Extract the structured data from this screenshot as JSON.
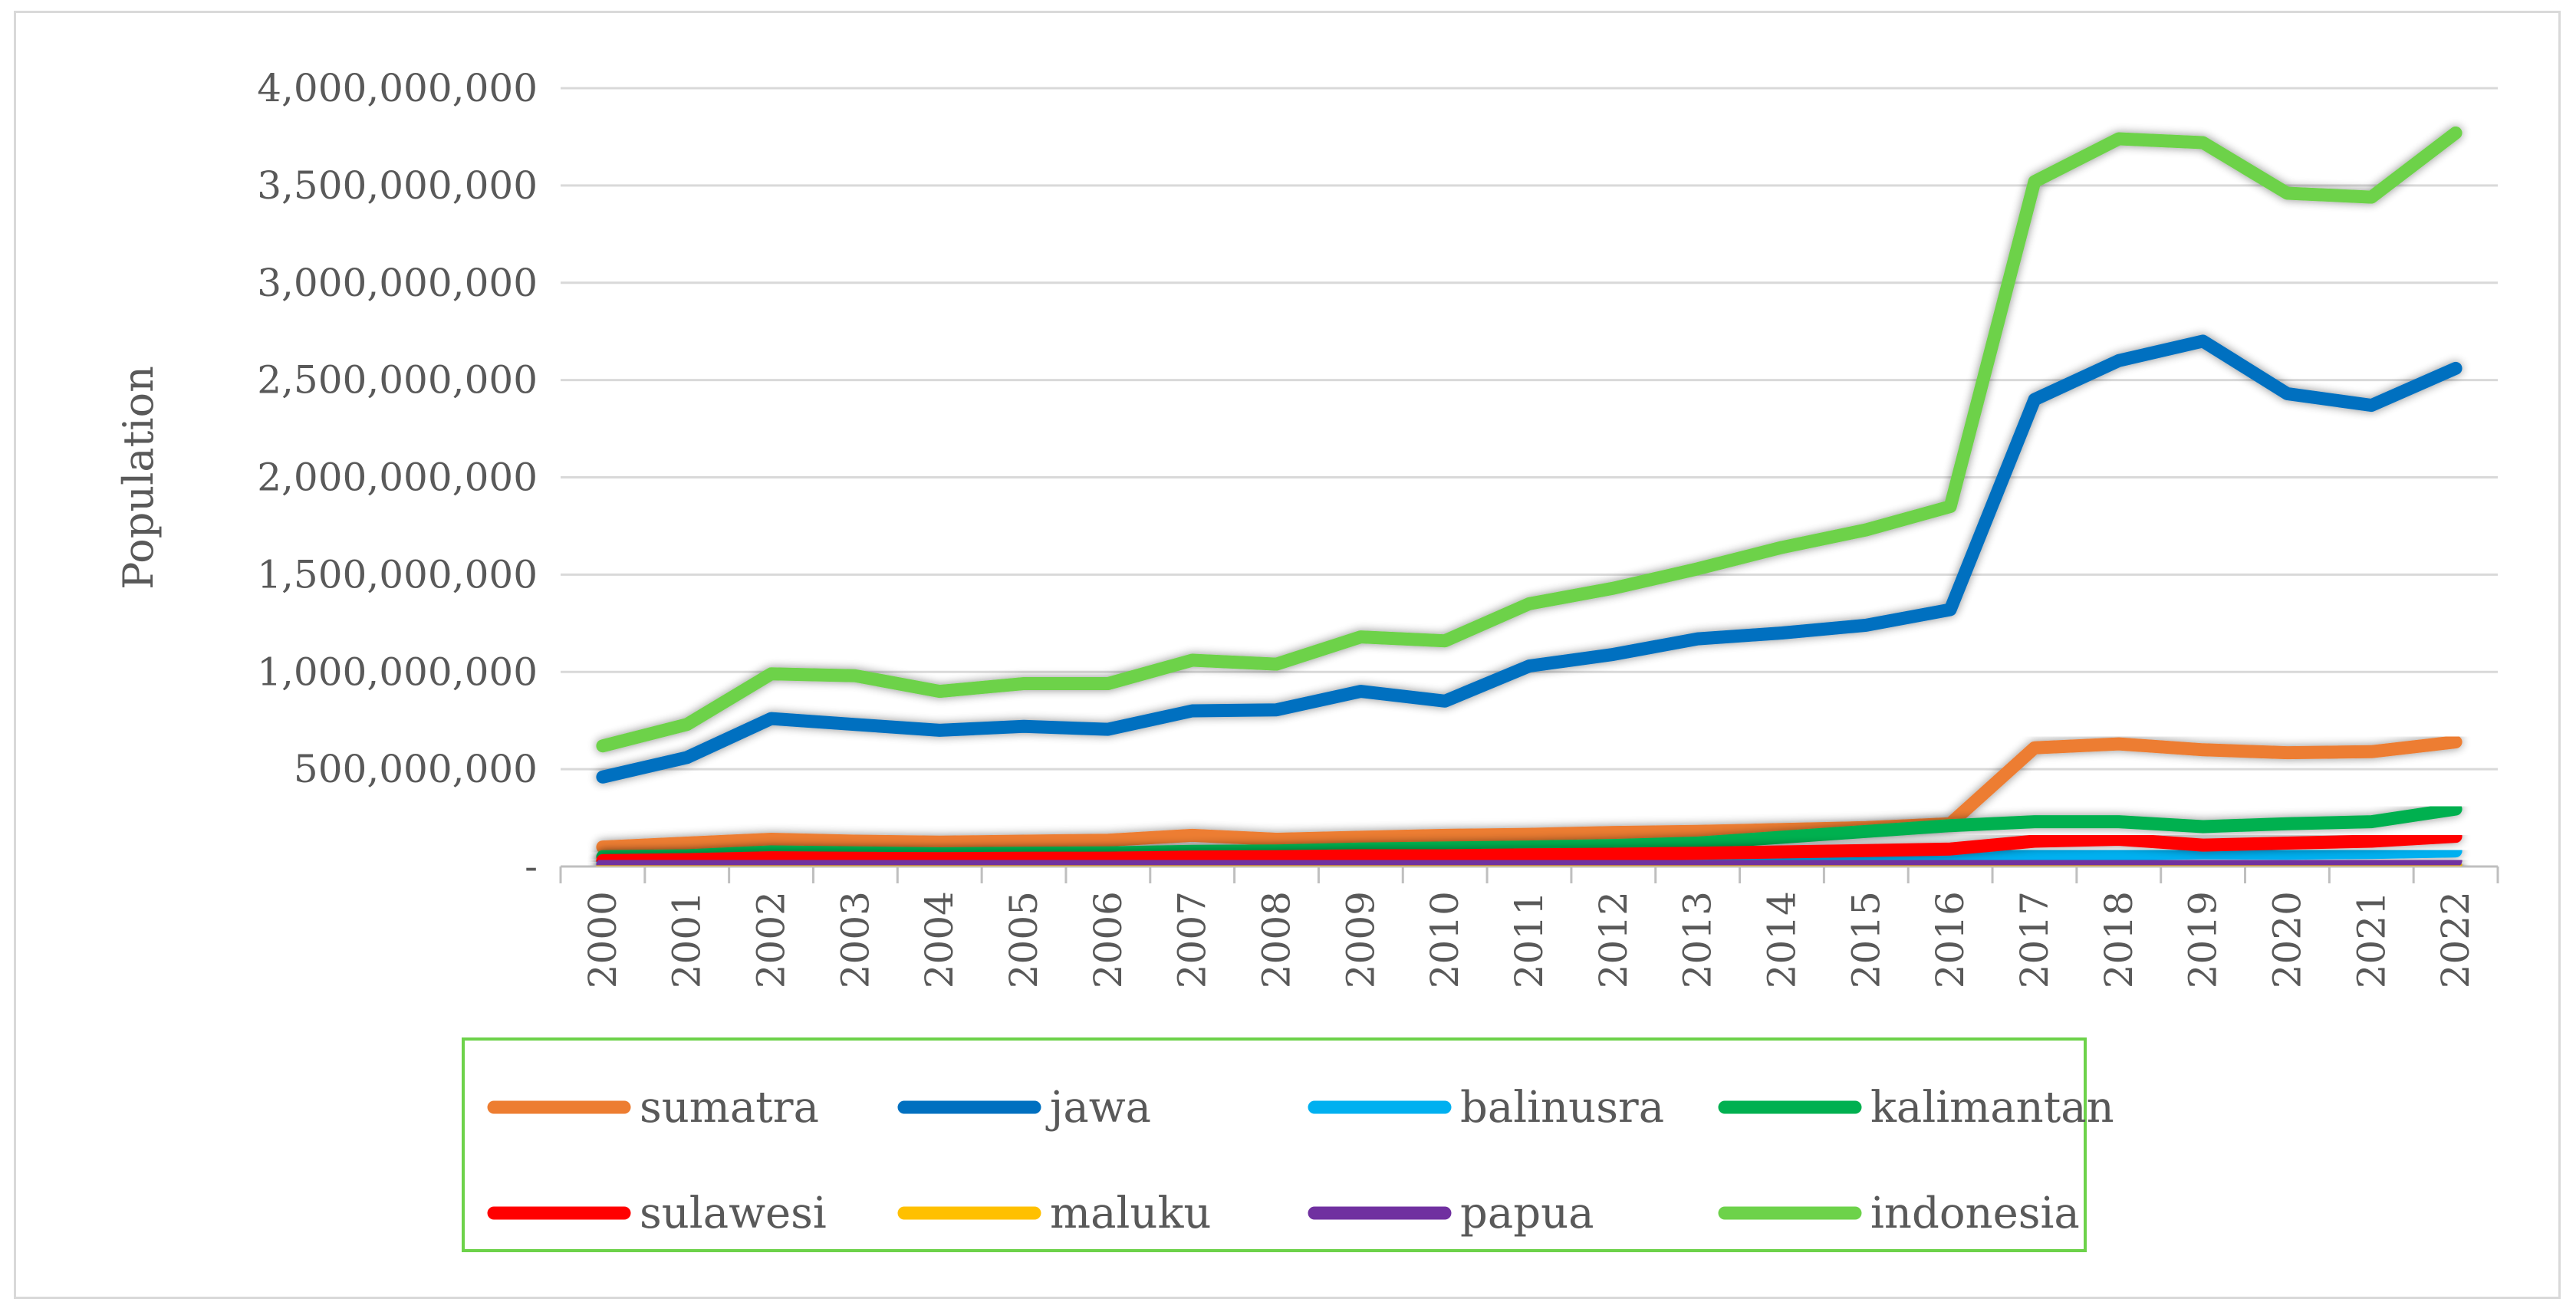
{
  "chart_data": {
    "type": "line",
    "title": "",
    "xlabel": "",
    "ylabel": "Population",
    "ylim": [
      0,
      4000000000
    ],
    "y_ticks": [
      {
        "value": 0,
        "label": "-"
      },
      {
        "value": 500000000,
        "label": "500,000,000"
      },
      {
        "value": 1000000000,
        "label": "1,000,000,000"
      },
      {
        "value": 1500000000,
        "label": "1,500,000,000"
      },
      {
        "value": 2000000000,
        "label": "2,000,000,000"
      },
      {
        "value": 2500000000,
        "label": "2,500,000,000"
      },
      {
        "value": 3000000000,
        "label": "3,000,000,000"
      },
      {
        "value": 3500000000,
        "label": "3,500,000,000"
      },
      {
        "value": 4000000000,
        "label": "4,000,000,000"
      }
    ],
    "x": [
      "2000",
      "2001",
      "2002",
      "2003",
      "2004",
      "2005",
      "2006",
      "2007",
      "2008",
      "2009",
      "2010",
      "2011",
      "2012",
      "2013",
      "2014",
      "2015",
      "2016",
      "2017",
      "2018",
      "2019",
      "2020",
      "2021",
      "2022"
    ],
    "grid": true,
    "legend_position": "bottom",
    "series": [
      {
        "name": "sumatra",
        "color": "#ED7D31",
        "values": [
          100000000,
          120000000,
          140000000,
          130000000,
          125000000,
          130000000,
          135000000,
          160000000,
          140000000,
          150000000,
          160000000,
          165000000,
          175000000,
          180000000,
          190000000,
          200000000,
          220000000,
          610000000,
          630000000,
          600000000,
          585000000,
          590000000,
          640000000
        ]
      },
      {
        "name": "jawa",
        "color": "#0070C0",
        "values": [
          460000000,
          560000000,
          760000000,
          730000000,
          700000000,
          720000000,
          705000000,
          800000000,
          805000000,
          900000000,
          850000000,
          1030000000,
          1090000000,
          1170000000,
          1200000000,
          1240000000,
          1320000000,
          2400000000,
          2600000000,
          2700000000,
          2430000000,
          2370000000,
          2560000000
        ]
      },
      {
        "name": "balinusra",
        "color": "#00B0F0",
        "values": [
          15000000,
          17000000,
          20000000,
          19000000,
          18000000,
          19000000,
          20000000,
          22000000,
          21000000,
          23000000,
          24000000,
          26000000,
          28000000,
          30000000,
          32000000,
          35000000,
          38000000,
          60000000,
          65000000,
          70000000,
          68000000,
          72000000,
          80000000
        ]
      },
      {
        "name": "kalimantan",
        "color": "#00B050",
        "values": [
          50000000,
          55000000,
          75000000,
          70000000,
          65000000,
          68000000,
          70000000,
          78000000,
          80000000,
          90000000,
          95000000,
          100000000,
          108000000,
          120000000,
          150000000,
          180000000,
          210000000,
          230000000,
          230000000,
          205000000,
          220000000,
          230000000,
          295000000
        ]
      },
      {
        "name": "sulawesi",
        "color": "#FF0000",
        "values": [
          30000000,
          35000000,
          45000000,
          42000000,
          40000000,
          42000000,
          43000000,
          48000000,
          50000000,
          55000000,
          55000000,
          60000000,
          63000000,
          68000000,
          75000000,
          82000000,
          90000000,
          130000000,
          140000000,
          110000000,
          120000000,
          130000000,
          155000000
        ]
      },
      {
        "name": "maluku",
        "color": "#FFC000",
        "values": [
          3000000,
          3500000,
          4000000,
          4000000,
          4000000,
          4200000,
          4300000,
          4500000,
          4600000,
          4800000,
          5000000,
          5300000,
          5600000,
          6000000,
          6400000,
          7000000,
          7500000,
          11000000,
          12000000,
          12500000,
          12000000,
          12200000,
          13000000
        ]
      },
      {
        "name": "papua",
        "color": "#7030A0",
        "values": [
          8000000,
          9000000,
          12000000,
          11000000,
          10500000,
          11000000,
          11000000,
          12500000,
          13000000,
          14000000,
          15000000,
          16000000,
          17000000,
          18000000,
          19000000,
          20000000,
          22000000,
          30000000,
          32000000,
          28000000,
          27000000,
          28000000,
          30000000
        ]
      },
      {
        "name": "indonesia",
        "color": "#6DD24A",
        "values": [
          620000000,
          730000000,
          990000000,
          980000000,
          900000000,
          940000000,
          940000000,
          1060000000,
          1040000000,
          1180000000,
          1160000000,
          1350000000,
          1430000000,
          1530000000,
          1640000000,
          1730000000,
          1850000000,
          3520000000,
          3740000000,
          3720000000,
          3460000000,
          3440000000,
          3770000000
        ]
      }
    ]
  }
}
